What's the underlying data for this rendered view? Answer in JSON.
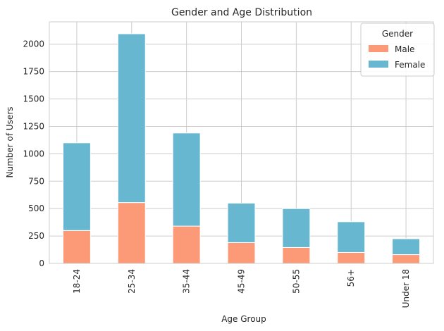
{
  "chart_data": {
    "type": "bar",
    "stacked": true,
    "title": "Gender and Age Distribution",
    "xlabel": "Age Group",
    "ylabel": "Number of Users",
    "categories": [
      "18-24",
      "25-34",
      "35-44",
      "45-49",
      "50-55",
      "56+",
      "Under 18"
    ],
    "series": [
      {
        "name": "Male",
        "color": "#fc9a78",
        "values": [
          300,
          555,
          340,
          190,
          145,
          100,
          80
        ]
      },
      {
        "name": "Female",
        "color": "#67b7d1",
        "values": [
          800,
          1540,
          850,
          360,
          355,
          280,
          145
        ]
      }
    ],
    "ylim": [
      0,
      2204
    ],
    "yticks": [
      0,
      250,
      500,
      750,
      1000,
      1250,
      1500,
      1750,
      2000
    ],
    "grid": true,
    "legend": {
      "title": "Gender",
      "position": "top-right"
    }
  }
}
